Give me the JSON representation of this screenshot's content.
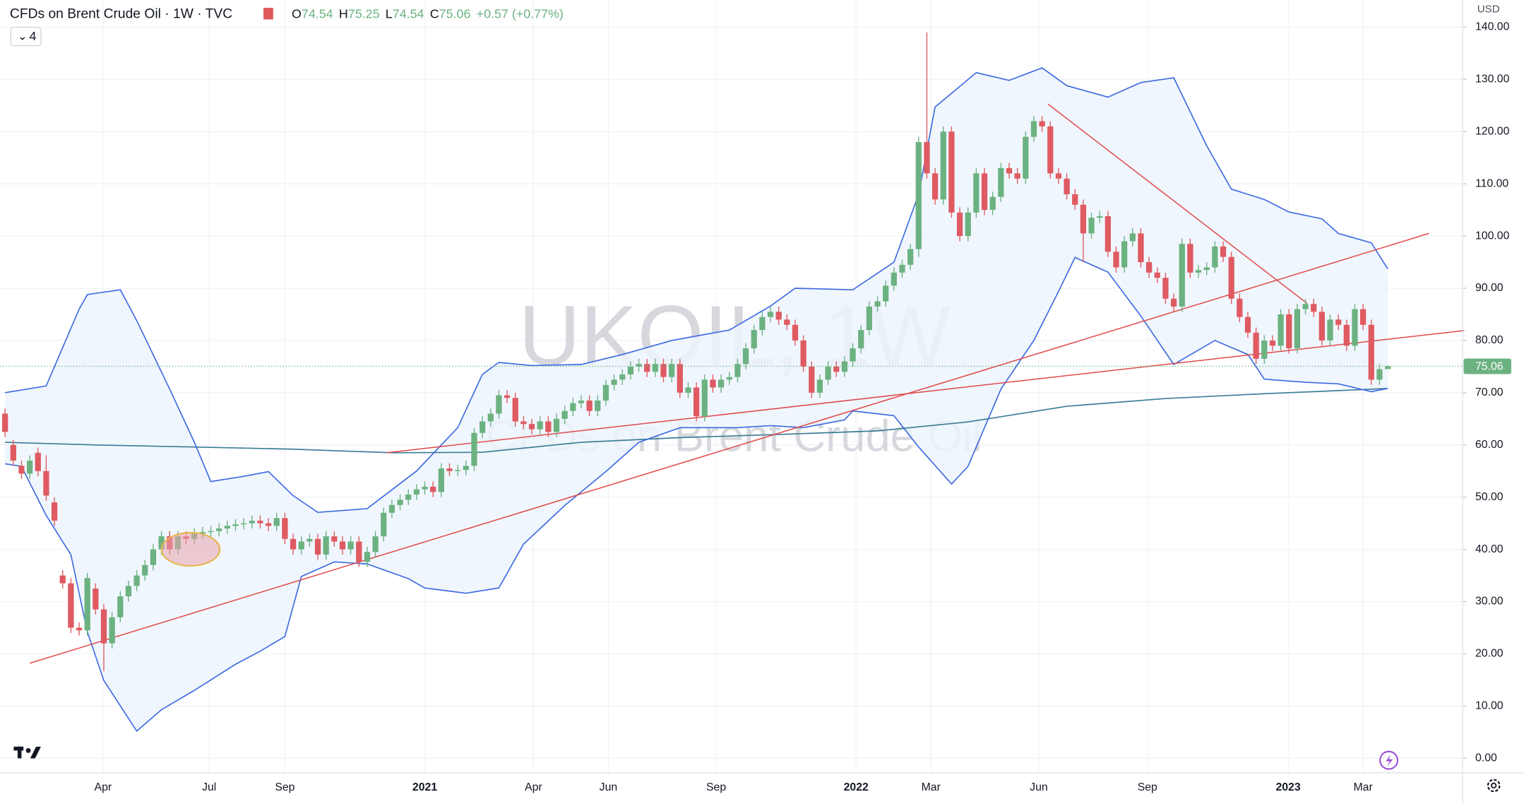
{
  "chart_data": {
    "type": "candlestick",
    "title": "CFDs on Brent Crude Oil · 1W · TVC",
    "ohlc": [
      [
        "O",
        "74.54"
      ],
      [
        "H",
        "75.25"
      ],
      [
        "L",
        "74.54"
      ],
      [
        "C",
        "75.06"
      ]
    ],
    "change": "+0.57 (+0.77%)",
    "indicator_count": "4",
    "watermark": "UKOIL, 1W",
    "watermark_subtitle": "CFDs on Brent Crude Oil",
    "currency": "USD",
    "up_color": "#6cb281",
    "down_color": "#df5a61",
    "band_color": "#3d6be0",
    "band_fill": "#edf4fd",
    "ma_color": "#3b7c96",
    "trend_color": "#e04a4a",
    "grid": true,
    "xlim": [
      -0.6,
      177.1
    ],
    "ylim": [
      -2.8,
      145.2
    ],
    "xticks": [
      {
        "value": 11.9,
        "label": "Apr"
      },
      {
        "value": 24.8,
        "label": "Jul"
      },
      {
        "value": 34,
        "label": "Sep"
      },
      {
        "value": 51,
        "label": "2021"
      },
      {
        "value": 64.2,
        "label": "Apr"
      },
      {
        "value": 73.3,
        "label": "Jun"
      },
      {
        "value": 86.4,
        "label": "Sep"
      },
      {
        "value": 103.4,
        "label": "2022"
      },
      {
        "value": 112.5,
        "label": "Mar"
      },
      {
        "value": 125.6,
        "label": "Jun"
      },
      {
        "value": 138.8,
        "label": "Sep"
      },
      {
        "value": 155.9,
        "label": "2023"
      },
      {
        "value": 165,
        "label": "Mar"
      }
    ],
    "yticks": [
      {
        "value": 0,
        "label": "0.00"
      },
      {
        "value": 10,
        "label": "10.00"
      },
      {
        "value": 20,
        "label": "20.00"
      },
      {
        "value": 30,
        "label": "30.00"
      },
      {
        "value": 40,
        "label": "40.00"
      },
      {
        "value": 50,
        "label": "50.00"
      },
      {
        "value": 60,
        "label": "60.00"
      },
      {
        "value": 70,
        "label": "70.00"
      },
      {
        "value": 80,
        "label": "80.00"
      },
      {
        "value": 90,
        "label": "90.00"
      },
      {
        "value": 100,
        "label": "100.00"
      },
      {
        "value": 110,
        "label": "110.00"
      },
      {
        "value": 120,
        "label": "120.00"
      },
      {
        "value": 130,
        "label": "130.00"
      },
      {
        "value": 140,
        "label": "140.00"
      }
    ],
    "open": [
      66,
      60,
      56,
      54.5,
      58.5,
      55,
      49,
      35,
      33.5,
      25,
      24.5,
      32.5,
      28.5,
      22,
      27,
      31,
      33,
      35,
      37,
      40,
      42.5,
      40,
      42.5,
      42,
      43,
      43.3,
      43.5,
      44,
      44.5,
      44.8,
      45,
      45.5,
      45,
      44.5,
      46,
      42,
      40,
      41.5,
      42,
      39,
      42.5,
      41.5,
      40,
      41.5,
      37.6,
      39.5,
      42.5,
      47,
      48.5,
      49.5,
      50.5,
      51.5,
      52,
      51,
      55.5,
      55,
      55.2,
      56,
      62.3,
      64.5,
      66,
      69.5,
      69,
      64.5,
      64,
      63,
      64.5,
      62.5,
      65,
      66.5,
      68,
      68.5,
      66.5,
      68.5,
      71.5,
      72.5,
      73.5,
      75,
      75.5,
      74,
      75.5,
      73,
      75.5,
      70,
      71,
      65.5,
      72.5,
      71,
      72.5,
      73,
      75.5,
      78.5,
      82,
      84.5,
      85.5,
      84,
      83,
      80,
      75,
      70,
      72.5,
      75,
      74,
      76,
      78.5,
      82,
      86.5,
      87.5,
      90.5,
      93,
      94.5,
      97.5,
      118,
      112,
      107,
      120,
      104.5,
      100,
      104.5,
      112,
      105,
      107.5,
      113,
      112,
      111,
      119,
      122,
      121,
      112,
      111,
      108,
      106,
      100.5,
      103.5,
      103.8,
      97,
      94,
      99,
      100.5,
      95,
      93,
      92,
      88,
      86.5,
      98.5,
      93,
      93.5,
      94,
      98,
      96,
      88,
      84.5,
      81.5,
      76.5,
      80,
      79,
      85,
      78.5,
      86,
      87,
      85.5,
      80,
      84,
      83,
      79,
      86,
      83,
      72.5,
      74.54
    ],
    "high": [
      67,
      61,
      57,
      58,
      59.5,
      58,
      50,
      36,
      34.5,
      26,
      35.5,
      33.5,
      29.5,
      28,
      32,
      34,
      36,
      38,
      41,
      43.5,
      43.5,
      43.5,
      43.5,
      44,
      44.3,
      44.5,
      45,
      45.5,
      45.8,
      46,
      46.5,
      46.5,
      46,
      47,
      47,
      43,
      42.5,
      43,
      43,
      43.5,
      43.5,
      42.5,
      42.5,
      42.5,
      40.5,
      43.5,
      48,
      49.5,
      50.5,
      51.5,
      52.5,
      53,
      53,
      56.5,
      56.5,
      56.2,
      57,
      63.3,
      65.5,
      67,
      70.5,
      70.5,
      70,
      65.5,
      65,
      65.5,
      65.5,
      66,
      67.5,
      69,
      69.5,
      69.5,
      69.5,
      72.5,
      73.5,
      74.5,
      76,
      76.5,
      76.5,
      76.5,
      76.5,
      76.5,
      76.5,
      72,
      72,
      73.5,
      73.5,
      73.5,
      74,
      76.5,
      79.5,
      83,
      85.5,
      86.5,
      86.5,
      85,
      84,
      81,
      76,
      73.5,
      76,
      76,
      77,
      79.5,
      83,
      87.5,
      88.5,
      91.5,
      94,
      95.5,
      98.5,
      119,
      139,
      113,
      121,
      121,
      105.5,
      105.5,
      113,
      113,
      108.5,
      114,
      114,
      113,
      120,
      123,
      123,
      122,
      113,
      112,
      109,
      107,
      104.5,
      104.8,
      104.8,
      98,
      100,
      101.5,
      101.5,
      96,
      94,
      93,
      89,
      99.5,
      99.5,
      94.5,
      95,
      99,
      99,
      97,
      89,
      85.5,
      82.5,
      81,
      81,
      86,
      86,
      87,
      88,
      88,
      86.5,
      85,
      85,
      84,
      87,
      87,
      84,
      75.5,
      75.25
    ],
    "low": [
      61.5,
      56,
      53.5,
      53.5,
      54,
      49.3,
      44.5,
      32.5,
      24,
      23.5,
      23.5,
      27.5,
      16.7,
      21,
      26,
      30,
      32,
      34,
      36,
      39,
      39,
      39,
      41,
      41,
      42,
      42.3,
      42.5,
      43,
      43.5,
      43.8,
      44,
      44,
      43.5,
      43.5,
      41,
      39,
      39,
      40.5,
      38,
      38,
      40.5,
      39,
      39,
      36.6,
      36.6,
      38.5,
      41.5,
      46,
      47.5,
      48.5,
      49.5,
      50.5,
      50,
      50,
      54,
      54,
      54.2,
      55,
      61.3,
      63.5,
      65,
      68,
      63.5,
      63,
      62,
      62,
      61.5,
      61.5,
      64,
      65.5,
      67,
      65.5,
      65.5,
      67.5,
      70.5,
      71.5,
      72.5,
      74,
      73,
      73,
      72,
      72,
      69,
      69,
      64.5,
      64.5,
      70,
      70,
      71.5,
      72,
      74.5,
      77.5,
      81,
      83.5,
      83,
      82,
      79,
      74,
      69,
      69,
      71.5,
      73,
      73,
      75,
      77.5,
      81,
      85.5,
      86.5,
      89.5,
      92,
      93.5,
      96,
      111,
      106,
      106,
      103.5,
      99,
      99,
      103.5,
      104,
      104,
      106.5,
      111,
      110,
      110,
      118,
      120,
      111,
      110,
      107,
      105,
      95,
      99.5,
      102.5,
      96,
      93,
      93,
      98,
      94,
      92,
      91,
      87,
      85.5,
      85.5,
      92,
      92,
      92.5,
      93,
      95,
      87,
      83.5,
      80.5,
      75.5,
      75.5,
      78,
      78,
      77.5,
      77.5,
      85,
      84.5,
      79,
      79,
      82,
      78,
      78,
      82,
      71.5,
      71.5,
      74.54
    ],
    "close": [
      62.5,
      57,
      54.5,
      57,
      55,
      50.3,
      45.5,
      33.5,
      25,
      24.5,
      34.5,
      28.5,
      22,
      27,
      31,
      33,
      35,
      37,
      40,
      42.5,
      40,
      42.5,
      42,
      43,
      43.3,
      43.5,
      44,
      44.5,
      44.8,
      45,
      45.5,
      45,
      44.5,
      46,
      42,
      40,
      41.5,
      42,
      39,
      42.5,
      41.5,
      40,
      41.5,
      37.6,
      39.5,
      42.5,
      47,
      48.5,
      49.5,
      50.5,
      51.5,
      52,
      51,
      55.5,
      55,
      55.2,
      56,
      62.3,
      64.5,
      66,
      69.5,
      69,
      64.5,
      64,
      63,
      64.5,
      62.5,
      65,
      66.5,
      68,
      68.5,
      66.5,
      68.5,
      71.5,
      72.5,
      73.5,
      75,
      75.5,
      74,
      75.5,
      73,
      75.5,
      70,
      71,
      65.5,
      72.5,
      71,
      72.5,
      73,
      75.5,
      78.5,
      82,
      84.5,
      85.5,
      84,
      83,
      80,
      75,
      70,
      72.5,
      75,
      74,
      76,
      78.5,
      82,
      86.5,
      87.5,
      90.5,
      93,
      94.5,
      97.5,
      118,
      112,
      107,
      120,
      104.5,
      100,
      104.5,
      112,
      105,
      107.5,
      113,
      112,
      111,
      119,
      122,
      121,
      112,
      111,
      108,
      106,
      100.5,
      103.5,
      103.8,
      97,
      94,
      99,
      100.5,
      95,
      93,
      92,
      88,
      86.5,
      98.5,
      93,
      93.5,
      94,
      98,
      96,
      88,
      84.5,
      81.5,
      76.5,
      80,
      79,
      85,
      78.5,
      86,
      87,
      85.5,
      80,
      84,
      83,
      79,
      86,
      83,
      72.5,
      74.5,
      75.06
    ],
    "bands": {
      "upper": {
        "x": [
          0,
          5,
          9,
          10,
          14,
          16,
          20,
          23,
          25,
          29,
          32,
          35,
          38,
          44,
          50,
          55,
          58,
          60,
          64,
          70,
          75,
          81,
          88,
          93,
          96,
          103,
          108,
          111,
          113,
          118,
          122,
          126,
          129,
          134,
          138,
          142,
          146,
          149,
          153,
          156,
          160,
          162,
          166,
          168
        ],
        "values": [
          70,
          71.3,
          86,
          88.8,
          89.7,
          83.8,
          70.7,
          60.5,
          53,
          54,
          54.9,
          50.3,
          47.1,
          47.8,
          55,
          63.3,
          73.5,
          75.8,
          75.2,
          75.4,
          77.3,
          80,
          82,
          86.6,
          90,
          89.7,
          95,
          108,
          124.7,
          131.3,
          129.8,
          132.2,
          128.8,
          126.6,
          129.4,
          130.3,
          117.3,
          109,
          107,
          104.6,
          103.3,
          100.5,
          98.7,
          93.7
        ]
      },
      "lower": {
        "x": [
          0,
          2,
          5,
          8,
          10,
          12,
          16,
          19,
          23,
          28,
          31,
          34,
          36,
          40,
          44,
          49,
          51,
          56,
          60,
          63,
          68,
          73,
          77,
          82,
          89,
          93,
          97,
          102,
          103,
          108,
          111,
          115,
          117,
          121,
          125,
          128,
          130,
          134,
          138,
          142,
          147,
          151,
          153,
          158,
          162,
          166,
          168
        ],
        "values": [
          56.4,
          55.9,
          46.5,
          39,
          24.2,
          14.9,
          5.2,
          9.3,
          13,
          18,
          20.5,
          23.3,
          34.8,
          37.6,
          37.2,
          34.4,
          32.6,
          31.6,
          32.6,
          41,
          48.4,
          54.9,
          60.5,
          63.3,
          63.3,
          63.7,
          63.3,
          64.8,
          66.5,
          65.6,
          59.6,
          52.5,
          55.9,
          70.7,
          80,
          89.4,
          95.9,
          93.1,
          84.7,
          75.4,
          80,
          77.3,
          72.6,
          72,
          71.7,
          70.2,
          70.8
        ]
      },
      "ma": {
        "x": [
          0,
          11,
          23,
          35,
          47,
          58,
          70,
          82,
          94,
          106,
          117,
          129,
          141,
          153,
          168
        ],
        "values": [
          60.5,
          60,
          59.6,
          59.2,
          58.5,
          58.6,
          60.5,
          61.4,
          62,
          62.7,
          64.4,
          67.4,
          68.9,
          69.8,
          70.8
        ]
      }
    },
    "trendlines": [
      {
        "x": [
          3,
          173
        ],
        "values": [
          18.2,
          100.5
        ]
      },
      {
        "x": [
          46.3,
          177.3
        ],
        "values": [
          58.5,
          81.9
        ]
      },
      {
        "x": [
          126.7,
          158.2
        ],
        "values": [
          125.3,
          87.1
        ]
      }
    ]
  }
}
